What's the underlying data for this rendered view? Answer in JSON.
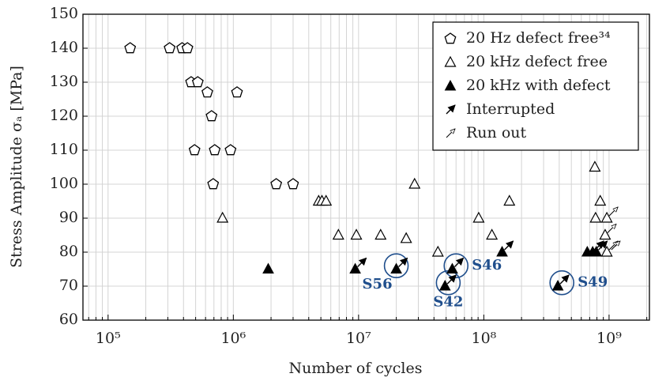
{
  "chart_data": {
    "type": "scatter",
    "xlabel": "Number of cycles",
    "ylabel": "Stress Amplitude σₐ [MPa]",
    "xscale": "log",
    "xlim": [
      63000,
      2100000000
    ],
    "ylim": [
      60,
      150
    ],
    "xticks": [
      {
        "value": 100000,
        "label": "10⁵"
      },
      {
        "value": 1000000,
        "label": "10⁶"
      },
      {
        "value": 10000000,
        "label": "10⁷"
      },
      {
        "value": 100000000,
        "label": "10⁸"
      },
      {
        "value": 1000000000,
        "label": "10⁹"
      }
    ],
    "yticks": [
      60,
      70,
      80,
      90,
      100,
      110,
      120,
      130,
      140,
      150
    ],
    "grid": true,
    "minor_grid": true,
    "legend": "upper right",
    "series": [
      {
        "name": "20 Hz defect free³⁴",
        "marker": "pentagon",
        "color": "#000000",
        "x": [
          150000,
          310000,
          390000,
          430000,
          460000,
          520000,
          620000,
          670000,
          490000,
          710000,
          950000,
          690000,
          1070000,
          2200000,
          3000000
        ],
        "values": [
          140,
          140,
          140,
          140,
          130,
          130,
          127,
          120,
          110,
          110,
          110,
          100,
          127,
          100,
          100
        ]
      },
      {
        "name": "20 kHz defect free",
        "marker": "triangle-open",
        "color": "#000000",
        "x": [
          820000,
          4800000,
          5100000,
          5500000,
          6900000,
          9600000,
          15000000,
          24000000,
          28000000,
          43000000,
          91000000,
          116000000,
          160000000,
          770000000,
          780000000,
          850000000,
          960000000,
          930000000,
          960000000
        ],
        "values": [
          90,
          95,
          95,
          95,
          85,
          85,
          85,
          84,
          100,
          80,
          90,
          85,
          95,
          105,
          90,
          95,
          90,
          85,
          80
        ]
      },
      {
        "name": "20 kHz with defect",
        "marker": "triangle-filled",
        "color": "#000000",
        "x": [
          1900000,
          9400000,
          20000000,
          49000000,
          56000000,
          140000000,
          390000000,
          670000000,
          740000000,
          790000000
        ],
        "values": [
          75,
          75,
          75,
          70,
          75,
          80,
          70,
          80,
          80,
          80
        ]
      },
      {
        "name": "Interrupted",
        "marker": "arrow-filled",
        "color": "#000000",
        "x": [
          9400000,
          20000000,
          49000000,
          56000000,
          140000000,
          390000000,
          740000000,
          790000000
        ],
        "values": [
          75,
          75,
          70,
          75,
          80,
          70,
          80,
          80
        ]
      },
      {
        "name": "Run out",
        "marker": "arrow-open",
        "color": "#000000",
        "x": [
          930000000,
          960000000,
          960000000,
          1000000000
        ],
        "values": [
          85,
          90,
          80,
          80
        ]
      }
    ],
    "annotations": [
      {
        "text": "S56",
        "x": 20000000,
        "y": 76,
        "placement": "below-left"
      },
      {
        "text": "S42",
        "x": 52000000,
        "y": 71,
        "placement": "below"
      },
      {
        "text": "S46",
        "x": 60000000,
        "y": 76,
        "placement": "right"
      },
      {
        "text": "S49",
        "x": 420000000,
        "y": 71,
        "placement": "right"
      }
    ],
    "annotation_color": "#1f4e8c"
  }
}
